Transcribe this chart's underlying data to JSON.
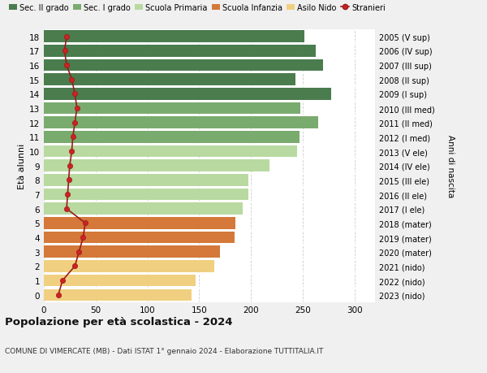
{
  "ages": [
    18,
    17,
    16,
    15,
    14,
    13,
    12,
    11,
    10,
    9,
    8,
    7,
    6,
    5,
    4,
    3,
    2,
    1,
    0
  ],
  "bar_values": [
    252,
    263,
    270,
    243,
    278,
    248,
    265,
    247,
    245,
    218,
    198,
    198,
    192,
    185,
    184,
    170,
    165,
    147,
    143
  ],
  "stranieri": [
    22,
    20,
    22,
    27,
    30,
    32,
    30,
    28,
    27,
    25,
    24,
    23,
    22,
    40,
    38,
    34,
    30,
    18,
    14
  ],
  "right_labels": [
    "2005 (V sup)",
    "2006 (IV sup)",
    "2007 (III sup)",
    "2008 (II sup)",
    "2009 (I sup)",
    "2010 (III med)",
    "2011 (II med)",
    "2012 (I med)",
    "2013 (V ele)",
    "2014 (IV ele)",
    "2015 (III ele)",
    "2016 (II ele)",
    "2017 (I ele)",
    "2018 (mater)",
    "2019 (mater)",
    "2020 (mater)",
    "2021 (nido)",
    "2022 (nido)",
    "2023 (nido)"
  ],
  "bar_colors": [
    "#4a7c4e",
    "#4a7c4e",
    "#4a7c4e",
    "#4a7c4e",
    "#4a7c4e",
    "#7aab6e",
    "#7aab6e",
    "#7aab6e",
    "#b8d9a0",
    "#b8d9a0",
    "#b8d9a0",
    "#b8d9a0",
    "#b8d9a0",
    "#d4793a",
    "#d4793a",
    "#d4793a",
    "#f0d080",
    "#f0d080",
    "#f0d080"
  ],
  "legend_labels": [
    "Sec. II grado",
    "Sec. I grado",
    "Scuola Primaria",
    "Scuola Infanzia",
    "Asilo Nido",
    "Stranieri"
  ],
  "legend_colors": [
    "#4a7c4e",
    "#7aab6e",
    "#b8d9a0",
    "#d4793a",
    "#f0d080",
    "#cc0000"
  ],
  "title": "Popolazione per età scolastica - 2024",
  "subtitle": "COMUNE DI VIMERCATE (MB) - Dati ISTAT 1° gennaio 2024 - Elaborazione TUTTITALIA.IT",
  "ylabel": "Età alunni",
  "right_ylabel": "Anni di nascita",
  "xlim": [
    0,
    320
  ],
  "xticks": [
    0,
    50,
    100,
    150,
    200,
    250,
    300
  ],
  "background_color": "#f0f0f0",
  "bar_background": "#ffffff",
  "grid_color": "#cccccc"
}
